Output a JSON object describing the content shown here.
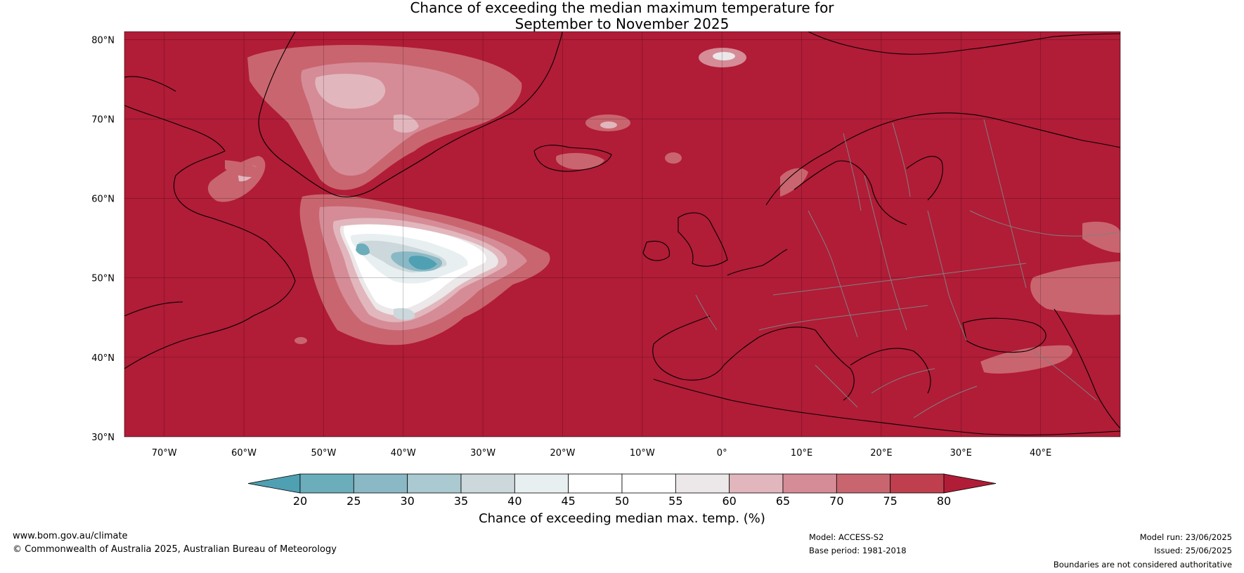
{
  "map": {
    "title_line1": "Chance of exceeding the median maximum temperature for",
    "title_line2": "September to November 2025",
    "lat_labels": [
      "80°N",
      "70°N",
      "60°N",
      "50°N",
      "40°N",
      "30°N"
    ],
    "lat_values": [
      80,
      70,
      60,
      50,
      40,
      30
    ],
    "lon_labels": [
      "70°W",
      "60°W",
      "50°W",
      "40°W",
      "30°W",
      "20°W",
      "10°W",
      "0°",
      "10°E",
      "20°E",
      "30°E",
      "40°E"
    ],
    "lon_values": [
      -70,
      -60,
      -50,
      -40,
      -30,
      -20,
      -10,
      0,
      10,
      20,
      30,
      40
    ],
    "extent": {
      "lon_min": -75,
      "lon_max": 50,
      "lat_min": 30,
      "lat_max": 81
    },
    "background_color": "#b11c37"
  },
  "colorbar": {
    "ticks": [
      "20",
      "25",
      "30",
      "35",
      "40",
      "45",
      "50",
      "55",
      "60",
      "65",
      "70",
      "75",
      "80"
    ],
    "colors": [
      "#4fa0b2",
      "#6cadbb",
      "#8ab9c5",
      "#aac9d0",
      "#ccd8db",
      "#e8eff0",
      "#ffffff",
      "#ffffff",
      "#ece7e8",
      "#e2b6bd",
      "#d58c97",
      "#c9656f",
      "#bf3f4e",
      "#b11c37"
    ],
    "label": "Chance of exceeding median max. temp. (%)"
  },
  "footer": {
    "website": "www.bom.gov.au/climate",
    "copyright": "© Commonwealth of Australia 2025, Australian Bureau of Meteorology",
    "model": "Model: ACCESS-S2",
    "base_period": "Base period: 1981-2018",
    "model_run": "Model run: 23/06/2025",
    "issued": "Issued: 25/06/2025",
    "disclaimer": "Boundaries are not considered authoritative"
  }
}
